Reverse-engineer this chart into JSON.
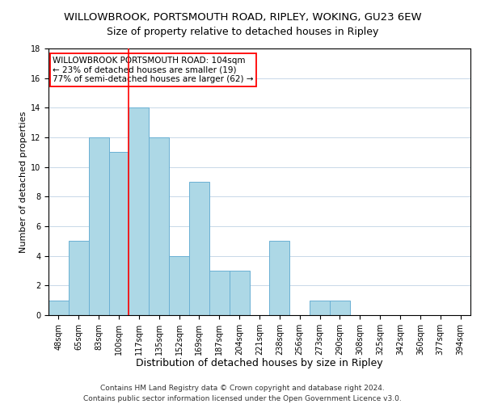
{
  "title": "WILLOWBROOK, PORTSMOUTH ROAD, RIPLEY, WOKING, GU23 6EW",
  "subtitle": "Size of property relative to detached houses in Ripley",
  "xlabel": "Distribution of detached houses by size in Ripley",
  "ylabel": "Number of detached properties",
  "bar_labels": [
    "48sqm",
    "65sqm",
    "83sqm",
    "100sqm",
    "117sqm",
    "135sqm",
    "152sqm",
    "169sqm",
    "187sqm",
    "204sqm",
    "221sqm",
    "238sqm",
    "256sqm",
    "273sqm",
    "290sqm",
    "308sqm",
    "325sqm",
    "342sqm",
    "360sqm",
    "377sqm",
    "394sqm"
  ],
  "bar_values": [
    1,
    5,
    12,
    11,
    14,
    12,
    4,
    9,
    3,
    3,
    0,
    5,
    0,
    1,
    1,
    0,
    0,
    0,
    0,
    0,
    0
  ],
  "bar_color": "#add8e6",
  "bar_edge_color": "#6ab0d4",
  "vline_color": "red",
  "vline_x": 3.5,
  "annotation_title": "WILLOWBROOK PORTSMOUTH ROAD: 104sqm",
  "annotation_line2": "← 23% of detached houses are smaller (19)",
  "annotation_line3": "77% of semi-detached houses are larger (62) →",
  "annotation_box_edge": "red",
  "annotation_box_face": "white",
  "ylim": [
    0,
    18
  ],
  "yticks": [
    0,
    2,
    4,
    6,
    8,
    10,
    12,
    14,
    16,
    18
  ],
  "footer_line1": "Contains HM Land Registry data © Crown copyright and database right 2024.",
  "footer_line2": "Contains public sector information licensed under the Open Government Licence v3.0.",
  "title_fontsize": 9.5,
  "subtitle_fontsize": 9,
  "xlabel_fontsize": 9,
  "ylabel_fontsize": 8,
  "tick_fontsize": 7,
  "annotation_fontsize": 7.5,
  "footer_fontsize": 6.5,
  "grid_color": "#c8d8e8"
}
